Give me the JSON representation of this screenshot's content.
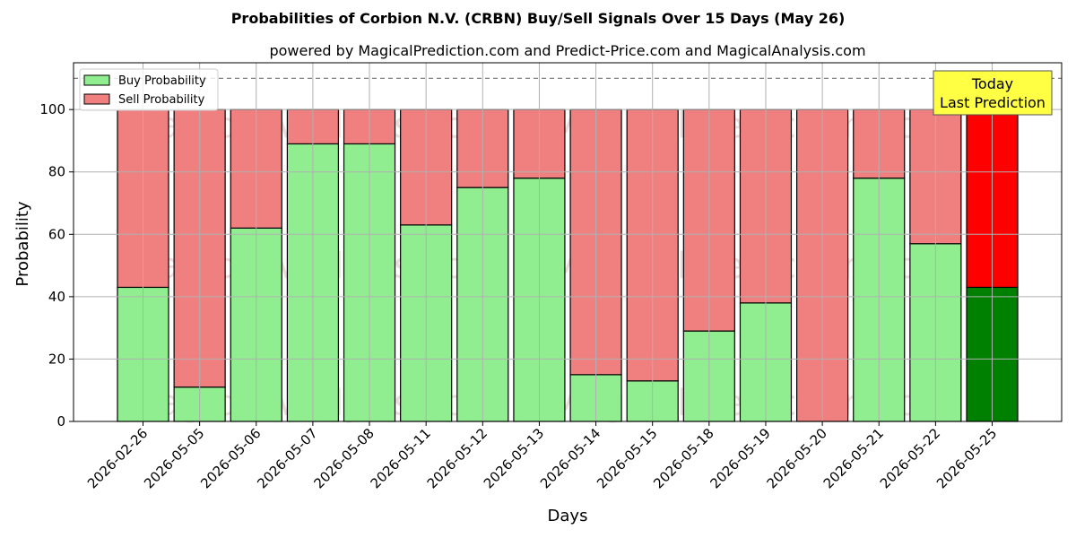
{
  "chart_data": {
    "type": "bar",
    "stacked": true,
    "title": "Probabilities of Corbion N.V. (CRBN) Buy/Sell Signals Over 15 Days (May 26)",
    "subtitle": "powered by MagicalPrediction.com and Predict-Price.com and MagicalAnalysis.com",
    "xlabel": "Days",
    "ylabel": "Probability",
    "ylim": [
      0,
      115
    ],
    "yticks": [
      0,
      20,
      40,
      60,
      80,
      100
    ],
    "grid": true,
    "legend_position": "top-left",
    "reference_line": 110,
    "categories": [
      "2026-02-26",
      "2026-05-05",
      "2026-05-06",
      "2026-05-07",
      "2026-05-08",
      "2026-05-11",
      "2026-05-12",
      "2026-05-13",
      "2026-05-14",
      "2026-05-15",
      "2026-05-18",
      "2026-05-19",
      "2026-05-20",
      "2026-05-21",
      "2026-05-22",
      "2026-05-25"
    ],
    "series": [
      {
        "name": "Buy Probability",
        "color": "#90ee90",
        "highlight_color": "#008000",
        "values": [
          43,
          11,
          62,
          89,
          89,
          63,
          75,
          78,
          15,
          13,
          29,
          38,
          0,
          78,
          57,
          43
        ]
      },
      {
        "name": "Sell Probability",
        "color": "#f08080",
        "highlight_color": "#ff0000",
        "values": [
          57,
          89,
          38,
          11,
          11,
          37,
          25,
          22,
          85,
          87,
          71,
          62,
          100,
          22,
          43,
          57
        ]
      }
    ],
    "highlight_index": 15,
    "annotation": {
      "line1": "Today",
      "line2": "Last Prediction",
      "background": "#ffff44"
    },
    "watermarks": [
      "MagicalAnalysis.com",
      "MagicalPrediction.com"
    ]
  }
}
